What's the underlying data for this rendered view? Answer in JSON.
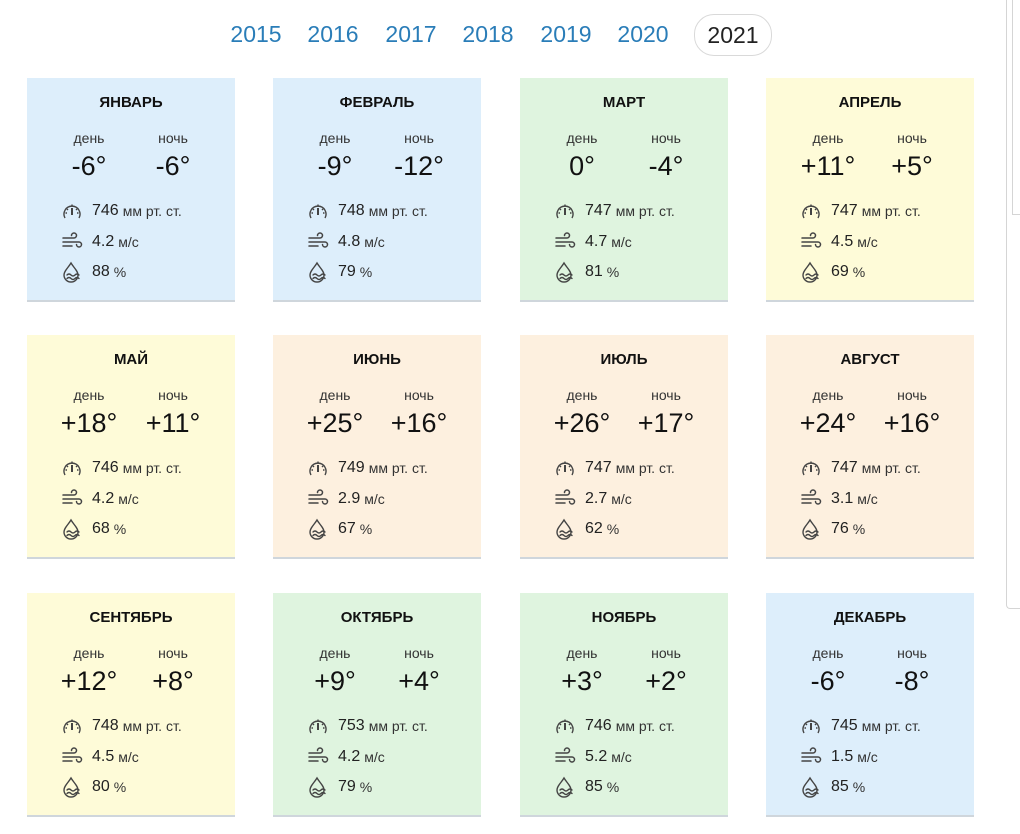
{
  "years": [
    {
      "label": "2015",
      "active": false
    },
    {
      "label": "2016",
      "active": false
    },
    {
      "label": "2017",
      "active": false
    },
    {
      "label": "2018",
      "active": false
    },
    {
      "label": "2019",
      "active": false
    },
    {
      "label": "2020",
      "active": false
    },
    {
      "label": "2021",
      "active": true
    }
  ],
  "labels": {
    "day": "день",
    "night": "ночь"
  },
  "units": {
    "pressure": "мм рт. ст.",
    "wind": "м/с",
    "humidity": "%"
  },
  "months": [
    {
      "name": "ЯНВАРЬ",
      "day": "-6°",
      "night": "-6°",
      "pressure": "746",
      "wind": "4.2",
      "humidity": "88",
      "bg": "#ddeefb"
    },
    {
      "name": "ФЕВРАЛЬ",
      "day": "-9°",
      "night": "-12°",
      "pressure": "748",
      "wind": "4.8",
      "humidity": "79",
      "bg": "#ddeefb"
    },
    {
      "name": "МАРТ",
      "day": "0°",
      "night": "-4°",
      "pressure": "747",
      "wind": "4.7",
      "humidity": "81",
      "bg": "#dff4df"
    },
    {
      "name": "АПРЕЛЬ",
      "day": "+11°",
      "night": "+5°",
      "pressure": "747",
      "wind": "4.5",
      "humidity": "69",
      "bg": "#fefbd8"
    },
    {
      "name": "МАЙ",
      "day": "+18°",
      "night": "+11°",
      "pressure": "746",
      "wind": "4.2",
      "humidity": "68",
      "bg": "#fefbd8"
    },
    {
      "name": "ИЮНЬ",
      "day": "+25°",
      "night": "+16°",
      "pressure": "749",
      "wind": "2.9",
      "humidity": "67",
      "bg": "#fdf0df"
    },
    {
      "name": "ИЮЛЬ",
      "day": "+26°",
      "night": "+17°",
      "pressure": "747",
      "wind": "2.7",
      "humidity": "62",
      "bg": "#fdf0df"
    },
    {
      "name": "АВГУСТ",
      "day": "+24°",
      "night": "+16°",
      "pressure": "747",
      "wind": "3.1",
      "humidity": "76",
      "bg": "#fdf0df"
    },
    {
      "name": "СЕНТЯБРЬ",
      "day": "+12°",
      "night": "+8°",
      "pressure": "748",
      "wind": "4.5",
      "humidity": "80",
      "bg": "#fefbd8"
    },
    {
      "name": "ОКТЯБРЬ",
      "day": "+9°",
      "night": "+4°",
      "pressure": "753",
      "wind": "4.2",
      "humidity": "79",
      "bg": "#dff4df"
    },
    {
      "name": "НОЯБРЬ",
      "day": "+3°",
      "night": "+2°",
      "pressure": "746",
      "wind": "5.2",
      "humidity": "85",
      "bg": "#dff4df"
    },
    {
      "name": "ДЕКАБРЬ",
      "day": "-6°",
      "night": "-8°",
      "pressure": "745",
      "wind": "1.5",
      "humidity": "85",
      "bg": "#ddeefb"
    }
  ],
  "icons": {
    "pressure": "gauge-icon",
    "wind": "wind-icon",
    "humidity": "humidity-icon"
  }
}
